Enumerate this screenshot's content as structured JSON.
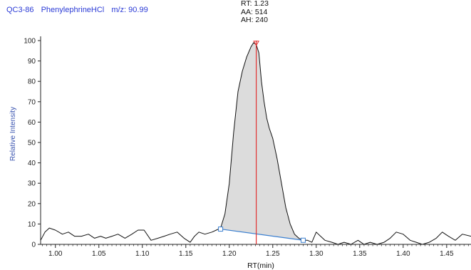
{
  "header": {
    "sample": "QC3-86",
    "compound": "PhenylephrineHCl",
    "mz": "m/z: 90.99"
  },
  "peak": {
    "rt_label": "RT: 1.23",
    "area_label": "AA: 514",
    "height_label": "AH: 240",
    "rt": 1.231,
    "start_rt": 1.19,
    "end_rt": 1.285,
    "baseline_start": 7.5,
    "baseline_end": 2.0
  },
  "colors": {
    "trace": "#111111",
    "fill": "#dcdcdc",
    "rt_marker": "#e03030",
    "baseline": "#3a7fd0",
    "header": "#2b3bd6",
    "axis_title": "#3b55b0"
  },
  "chart_data": {
    "type": "line",
    "xlabel": "RT(min)",
    "ylabel": "Relative Intensity",
    "xlim": [
      0.983,
      1.478
    ],
    "ylim": [
      0,
      100
    ],
    "xticks": [
      1.0,
      1.05,
      1.1,
      1.15,
      1.2,
      1.25,
      1.3,
      1.35,
      1.4,
      1.45
    ],
    "xtick_labels": [
      "1.00",
      "1.05",
      "1.10",
      "1.15",
      "1.20",
      "1.25",
      "1.30",
      "1.35",
      "1.40",
      "1.45"
    ],
    "yticks": [
      0,
      10,
      20,
      30,
      40,
      50,
      60,
      70,
      80,
      90,
      100
    ],
    "ytick_labels": [
      "0",
      "10",
      "20",
      "30",
      "40",
      "50",
      "60",
      "70",
      "80",
      "90",
      "100"
    ],
    "series": [
      {
        "x": [
          0.983,
          0.988,
          0.993,
          1.0,
          1.008,
          1.015,
          1.022,
          1.03,
          1.038,
          1.045,
          1.052,
          1.058,
          1.065,
          1.072,
          1.08,
          1.088,
          1.095,
          1.102,
          1.11,
          1.118,
          1.125,
          1.132,
          1.14,
          1.148,
          1.155,
          1.16,
          1.165,
          1.172,
          1.18,
          1.185,
          1.19,
          1.195,
          1.2,
          1.205,
          1.21,
          1.215,
          1.22,
          1.225,
          1.228,
          1.231,
          1.234,
          1.237,
          1.24,
          1.243,
          1.246,
          1.25,
          1.255,
          1.26,
          1.265,
          1.27,
          1.275,
          1.28,
          1.285,
          1.29,
          1.295,
          1.3,
          1.305,
          1.31,
          1.318,
          1.325,
          1.332,
          1.34,
          1.348,
          1.355,
          1.362,
          1.37,
          1.378,
          1.385,
          1.392,
          1.4,
          1.408,
          1.415,
          1.422,
          1.43,
          1.438,
          1.445,
          1.452,
          1.46,
          1.468,
          1.478
        ],
        "y": [
          2,
          6,
          8,
          7,
          5,
          6,
          4,
          4,
          5,
          3,
          4,
          3,
          4,
          5,
          3,
          5,
          7,
          7,
          2,
          3,
          4,
          5,
          6,
          3,
          1,
          4,
          6,
          5,
          6,
          7,
          8,
          15,
          30,
          55,
          75,
          85,
          92,
          97,
          99,
          98,
          94,
          80,
          70,
          62,
          57,
          52,
          42,
          30,
          18,
          10,
          5,
          3,
          2,
          2,
          1,
          6,
          4,
          2,
          1,
          0,
          1,
          0,
          2,
          0,
          1,
          0,
          1,
          3,
          6,
          5,
          2,
          1,
          0,
          1,
          3,
          6,
          4,
          2,
          5,
          4
        ]
      }
    ]
  }
}
